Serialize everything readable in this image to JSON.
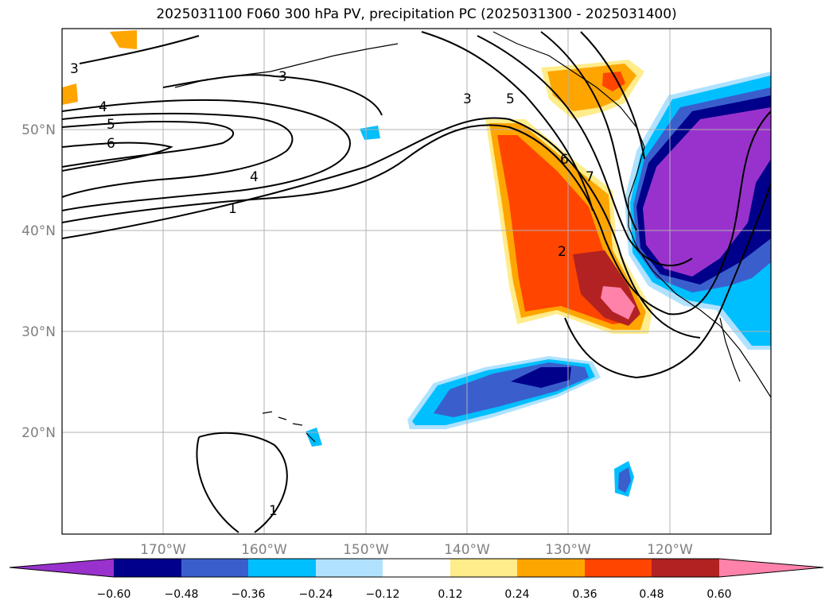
{
  "title": "2025031100 F060 300 hPa PV, precipitation PC (2025031300 - 2025031400)",
  "map": {
    "lat_labels": [
      "50°N",
      "40°N",
      "30°N",
      "20°N"
    ],
    "lon_labels": [
      "170°W",
      "160°W",
      "150°W",
      "140°W",
      "130°W",
      "120°W"
    ],
    "contour_labels": [
      "3",
      "4",
      "5",
      "6",
      "3",
      "4",
      "1",
      "3",
      "5",
      "6",
      "7",
      "2",
      "1"
    ]
  },
  "colorbar": {
    "ticks": [
      "−0.60",
      "−0.48",
      "−0.36",
      "−0.24",
      "−0.12",
      "0.12",
      "0.24",
      "0.36",
      "0.48",
      "0.60"
    ],
    "colors": [
      "#9932CC",
      "#00008B",
      "#3A5FCD",
      "#00BFFF",
      "#B0E2FF",
      "#FFFFFF",
      "#FFEC8B",
      "#FFA500",
      "#FF4500",
      "#B22222",
      "#FF82AB"
    ]
  }
}
